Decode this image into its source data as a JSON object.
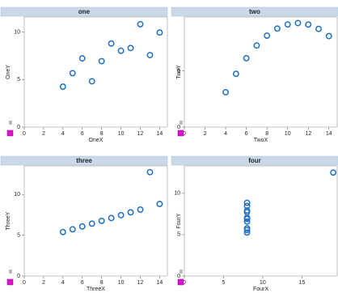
{
  "chart_data": [
    {
      "type": "scatter",
      "title": "one",
      "x_label": "OneX",
      "y_label": "OneY",
      "color": "#1f6fbf",
      "x": [
        10,
        8,
        13,
        9,
        11,
        14,
        6,
        4,
        12,
        7,
        5
      ],
      "values": [
        8.04,
        6.95,
        7.58,
        8.81,
        8.33,
        9.96,
        7.24,
        4.26,
        10.84,
        4.82,
        5.68
      ],
      "xlim": [
        0,
        14.8
      ],
      "ylim": [
        0,
        11.6
      ],
      "xticks": [
        0,
        2,
        4,
        6,
        8,
        10,
        12,
        14
      ],
      "yticks": [
        0,
        5,
        10
      ]
    },
    {
      "type": "scatter",
      "title": "two",
      "x_label": "TwoX",
      "y_label": "TwoY",
      "color": "#1f6fbf",
      "x": [
        10,
        8,
        13,
        9,
        11,
        14,
        6,
        4,
        12,
        7,
        5
      ],
      "values": [
        9.14,
        8.14,
        8.74,
        8.77,
        9.26,
        8.1,
        6.13,
        3.1,
        9.13,
        7.26,
        4.74
      ],
      "xlim": [
        0,
        14.8
      ],
      "ylim": [
        0,
        9.8
      ],
      "xticks": [
        0,
        2,
        4,
        6,
        8,
        10,
        12,
        14
      ],
      "yticks": [
        0,
        5
      ]
    },
    {
      "type": "scatter",
      "title": "three",
      "x_label": "ThreeX",
      "y_label": "ThreeY",
      "color": "#1f6fbf",
      "x": [
        10,
        8,
        13,
        9,
        11,
        14,
        6,
        4,
        12,
        7,
        5
      ],
      "values": [
        7.46,
        6.77,
        12.74,
        7.11,
        7.81,
        8.84,
        6.08,
        5.39,
        8.15,
        6.42,
        5.73
      ],
      "xlim": [
        0,
        14.8
      ],
      "ylim": [
        0,
        13.5
      ],
      "xticks": [
        0,
        2,
        4,
        6,
        8,
        10,
        12,
        14
      ],
      "yticks": [
        0,
        5,
        10
      ]
    },
    {
      "type": "scatter",
      "title": "four",
      "x_label": "FourX",
      "y_label": "FourY",
      "color": "#1f6fbf",
      "x": [
        8,
        8,
        8,
        8,
        8,
        8,
        8,
        19,
        8,
        8,
        8
      ],
      "values": [
        6.58,
        5.76,
        7.71,
        8.84,
        8.47,
        7.04,
        5.25,
        12.5,
        5.56,
        7.91,
        6.89
      ],
      "xlim": [
        0,
        19.5
      ],
      "ylim": [
        0,
        13.3
      ],
      "xticks": [
        0,
        5,
        10,
        15
      ],
      "yticks": [
        0,
        5,
        10
      ]
    }
  ]
}
